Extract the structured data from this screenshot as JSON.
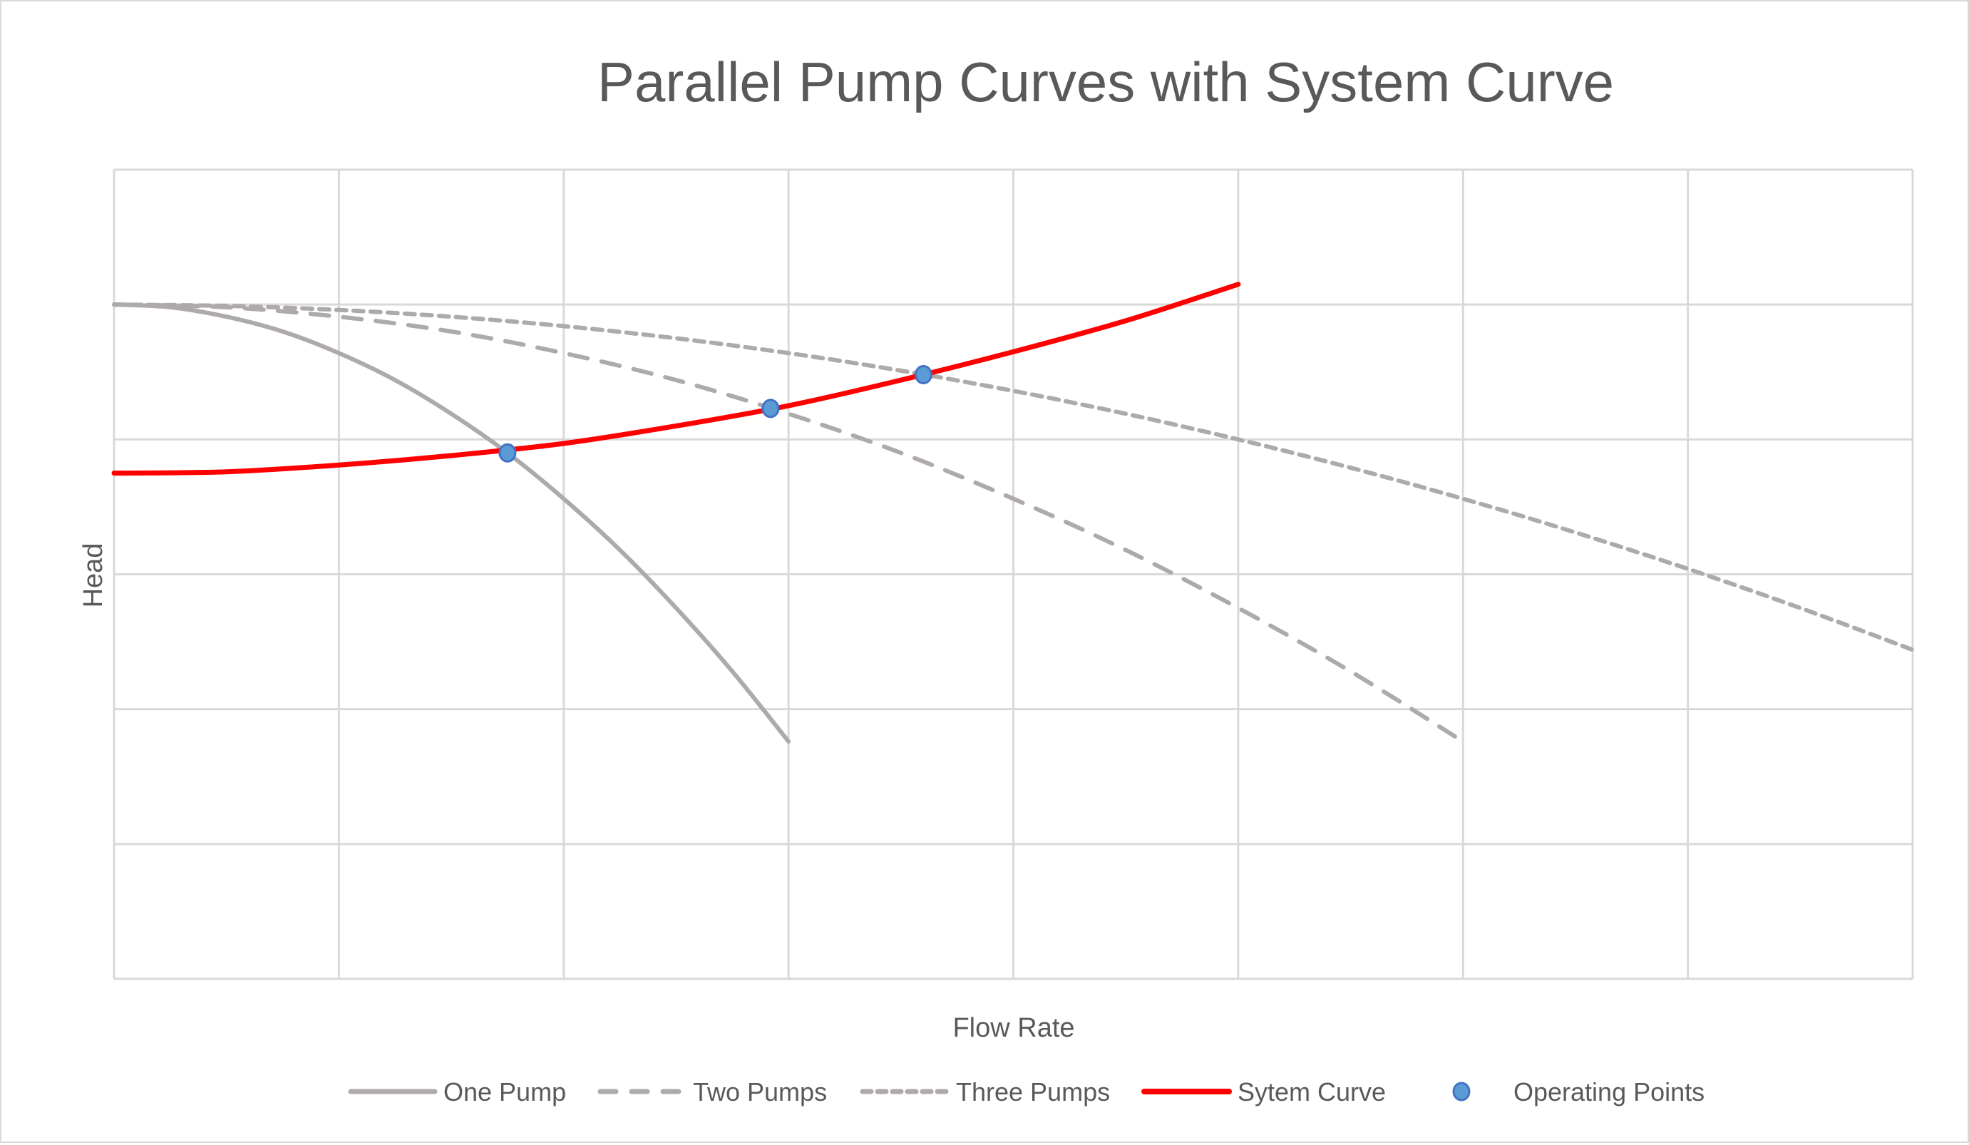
{
  "chart_data": {
    "type": "line",
    "title": "Parallel Pump Curves with System Curve",
    "xlabel": "Flow Rate",
    "ylabel": "Head",
    "xlim": [
      0,
      8
    ],
    "ylim": [
      0,
      6
    ],
    "x_gridlines": [
      0,
      1,
      2,
      3,
      4,
      5,
      6,
      7,
      8
    ],
    "y_gridlines": [
      0,
      1,
      2,
      3,
      4,
      5,
      6
    ],
    "tick_labels_visible": false,
    "grid": true,
    "legend_position": "bottom",
    "series": [
      {
        "name": "One Pump",
        "style": "solid",
        "color": "#aeaaaa",
        "x": [
          0,
          0.25,
          0.5,
          0.75,
          1,
          1.25,
          1.5,
          1.75,
          2,
          2.25,
          2.5,
          2.75,
          3
        ],
        "y": [
          5.0,
          4.98,
          4.91,
          4.8,
          4.64,
          4.44,
          4.19,
          3.9,
          3.56,
          3.18,
          2.75,
          2.28,
          1.76
        ]
      },
      {
        "name": "Two Pumps",
        "style": "dash",
        "color": "#aeaaaa",
        "x": [
          0,
          0.5,
          1,
          1.5,
          2,
          2.5,
          3,
          3.5,
          4,
          4.5,
          5,
          5.5,
          6
        ],
        "y": [
          5.0,
          4.98,
          4.91,
          4.8,
          4.64,
          4.44,
          4.19,
          3.9,
          3.56,
          3.18,
          2.75,
          2.28,
          1.76
        ]
      },
      {
        "name": "Three Pumps",
        "style": "dot",
        "color": "#aeaaaa",
        "x": [
          0,
          0.5,
          1,
          1.5,
          2,
          2.5,
          3,
          3.5,
          4,
          4.5,
          5,
          5.5,
          6,
          6.5,
          7,
          7.5,
          8
        ],
        "y": [
          5.0,
          4.99,
          4.96,
          4.91,
          4.84,
          4.75,
          4.64,
          4.51,
          4.36,
          4.19,
          4.0,
          3.79,
          3.56,
          3.31,
          3.04,
          2.75,
          2.44
        ]
      },
      {
        "name": "Sytem Curve",
        "style": "solid",
        "color": "#ff0000",
        "x": [
          0,
          0.5,
          1,
          1.5,
          2,
          2.5,
          3,
          3.5,
          4,
          4.5,
          5
        ],
        "y": [
          3.75,
          3.76,
          3.81,
          3.88,
          3.97,
          4.1,
          4.25,
          4.44,
          4.65,
          4.88,
          5.15
        ]
      }
    ],
    "operating_points": {
      "name": "Operating Points",
      "color": "#5b9bd5",
      "edge_color": "#4472c4",
      "points": [
        {
          "x": 1.75,
          "y": 3.9
        },
        {
          "x": 2.92,
          "y": 4.23
        },
        {
          "x": 3.6,
          "y": 4.48
        }
      ]
    },
    "legend": [
      {
        "label": "One Pump",
        "kind": "line",
        "style": "solid",
        "color": "#aeaaaa"
      },
      {
        "label": "Two Pumps",
        "kind": "line",
        "style": "dash",
        "color": "#aeaaaa"
      },
      {
        "label": "Three Pumps",
        "kind": "line",
        "style": "dot",
        "color": "#aeaaaa"
      },
      {
        "label": "Sytem Curve",
        "kind": "line",
        "style": "solid",
        "color": "#ff0000"
      },
      {
        "label": "Operating Points",
        "kind": "marker",
        "color": "#5b9bd5"
      }
    ]
  }
}
